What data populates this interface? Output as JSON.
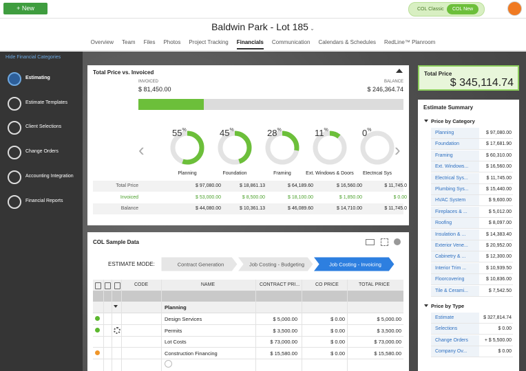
{
  "header": {
    "new_button": "New",
    "project_title": "Baldwin Park - Lot 185",
    "view_toggle": [
      "COL Classic",
      "COL New"
    ],
    "active_view": "COL New"
  },
  "tabs": [
    "Overview",
    "Team",
    "Files",
    "Photos",
    "Project Tracking",
    "Financials",
    "Communication",
    "Calendars & Schedules",
    "RedLine™ Planroom"
  ],
  "active_tab": "Financials",
  "sidebar": {
    "toggle_link": "Hide Financial Categories",
    "items": [
      "Estimating",
      "Estimate Templates",
      "Client Selections",
      "Change Orders",
      "Accounting Integration",
      "Financial Reports"
    ],
    "active_item": "Estimating"
  },
  "total_vs_invoiced": {
    "title": "Total Price vs. Invoiced",
    "invoiced_label": "INVOICED",
    "invoiced_value": "$ 81,450.00",
    "balance_label": "BALANCE",
    "balance_value": "$ 246,364.74",
    "percent_sign": "%",
    "gauges": [
      {
        "label": "Planning",
        "percent": 55
      },
      {
        "label": "Foundation",
        "percent": 45
      },
      {
        "label": "Framing",
        "percent": 28
      },
      {
        "label": "Ext. Windows & Doors",
        "percent": 11
      },
      {
        "label": "Electrical Sys",
        "percent": 0
      }
    ],
    "rows": [
      {
        "label": "Total Price",
        "values": [
          "$ 97,080.00",
          "$ 18,861.13",
          "$ 64,189.60",
          "$ 16,560.00",
          "$ 11,745.0"
        ]
      },
      {
        "label": "Invoiced",
        "values": [
          "$ 53,000.00",
          "$ 8,500.00",
          "$ 18,100.00",
          "$ 1,850.00",
          "$ 0.00"
        ]
      },
      {
        "label": "Balance",
        "values": [
          "$ 44,080.00",
          "$ 10,361.13",
          "$ 46,089.60",
          "$ 14,710.00",
          "$ 11,745.0"
        ]
      }
    ]
  },
  "sample_data": {
    "title": "COL Sample Data",
    "mode_label": "ESTIMATE MODE:",
    "modes": [
      "Contract Generation",
      "Job Costing - Budgeting",
      "Job Costing - Invoicing"
    ],
    "active_mode": "Job Costing - Invoicing",
    "columns": [
      "CODE",
      "NAME",
      "CONTRACT PRI...",
      "CO PRICE",
      "TOTAL PRICE"
    ],
    "group": "Planning",
    "rows": [
      {
        "status": "#5cb82e",
        "settings": false,
        "name": "Design Services",
        "contract_price": "$ 5,000.00",
        "co_price": "$ 0.00",
        "total_price": "$ 5,000.00"
      },
      {
        "status": "#5cb82e",
        "settings": true,
        "name": "Permits",
        "contract_price": "$ 3,500.00",
        "co_price": "$ 0.00",
        "total_price": "$ 3,500.00"
      },
      {
        "status": null,
        "settings": false,
        "name": "Lot Costs",
        "contract_price": "$ 73,000.00",
        "co_price": "$ 0.00",
        "total_price": "$ 73,000.00"
      },
      {
        "status": "#f0962a",
        "settings": false,
        "name": "Construction Financing",
        "contract_price": "$ 15,580.00",
        "co_price": "$ 0.00",
        "total_price": "$ 15,580.00"
      }
    ]
  },
  "summary": {
    "total_label": "Total Price",
    "total_value": "$ 345,114.74",
    "title": "Estimate Summary",
    "groups": [
      {
        "title": "Price by Category",
        "items": [
          {
            "name": "Planning",
            "value": "$ 97,080.00"
          },
          {
            "name": "Foundation",
            "value": "$ 17,681.90"
          },
          {
            "name": "Framing",
            "value": "$ 60,310.00"
          },
          {
            "name": "Ext. Windows...",
            "value": "$ 16,560.00"
          },
          {
            "name": "Electrical Sys...",
            "value": "$ 11,745.00"
          },
          {
            "name": "Plumbing Sys...",
            "value": "$ 15,440.00"
          },
          {
            "name": "HVAC System",
            "value": "$ 9,600.00"
          },
          {
            "name": "Fireplaces & ...",
            "value": "$ 5,012.00"
          },
          {
            "name": "Roofing",
            "value": "$ 8,097.00"
          },
          {
            "name": "Insulation & ...",
            "value": "$ 14,383.40"
          },
          {
            "name": "Exterior Vene...",
            "value": "$ 20,952.00"
          },
          {
            "name": "Cabinetry & ...",
            "value": "$ 12,300.00"
          },
          {
            "name": "Interior Trim ...",
            "value": "$ 10,939.50"
          },
          {
            "name": "Floorcovering",
            "value": "$ 10,836.00"
          },
          {
            "name": "Tile & Cerami...",
            "value": "$ 7,542.50"
          }
        ]
      },
      {
        "title": "Price by Type",
        "items": [
          {
            "name": "Estimate",
            "value": "$ 327,814.74"
          },
          {
            "name": "Selections",
            "value": "$ 0.00"
          },
          {
            "name": "Change Orders",
            "value": "+ $ 5,500.00"
          },
          {
            "name": "Company Ov...",
            "value": "$ 0.00"
          }
        ]
      }
    ]
  }
}
